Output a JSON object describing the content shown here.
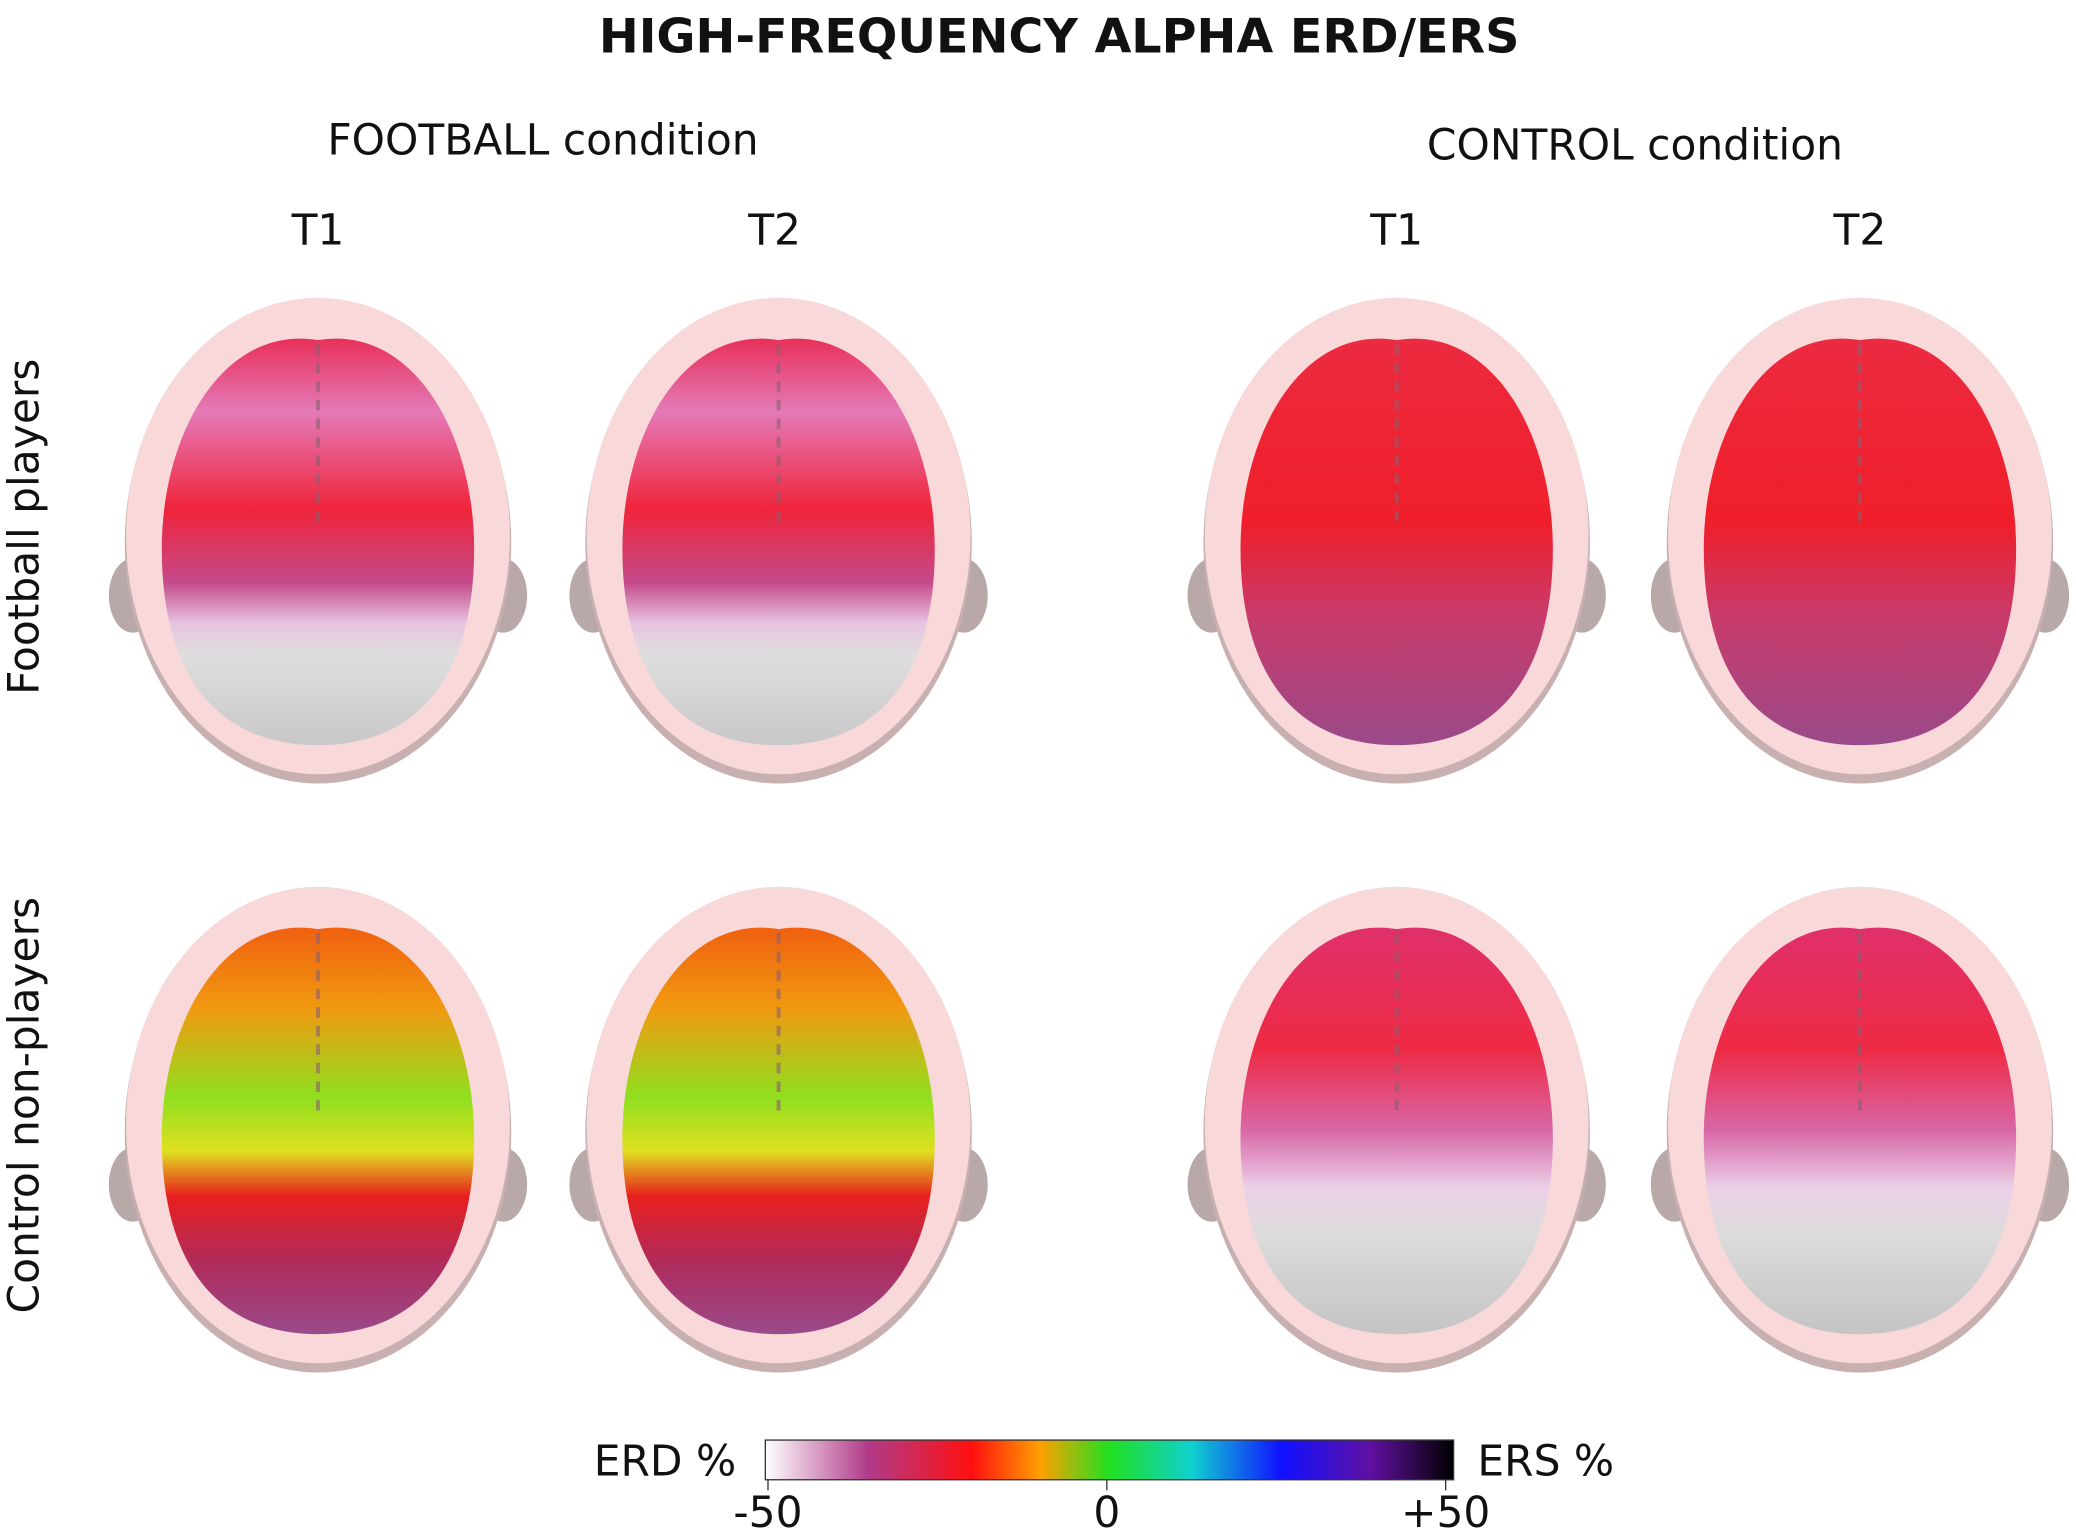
{
  "title": "HIGH-FREQUENCY ALPHA ERD/ERS",
  "columns": [
    {
      "label": "FOOTBALL condition",
      "times": [
        "T1",
        "T2"
      ]
    },
    {
      "label": "CONTROL condition",
      "times": [
        "T1",
        "T2"
      ]
    }
  ],
  "rows": [
    "Football players",
    "Control non-players"
  ],
  "colorbar": {
    "left_label": "ERD %",
    "right_label": "ERS %",
    "range": [
      -50,
      50
    ],
    "ticks": [
      {
        "value": -50,
        "label": "-50"
      },
      {
        "value": 0,
        "label": "0"
      },
      {
        "value": 50,
        "label": "+50"
      }
    ]
  }
}
